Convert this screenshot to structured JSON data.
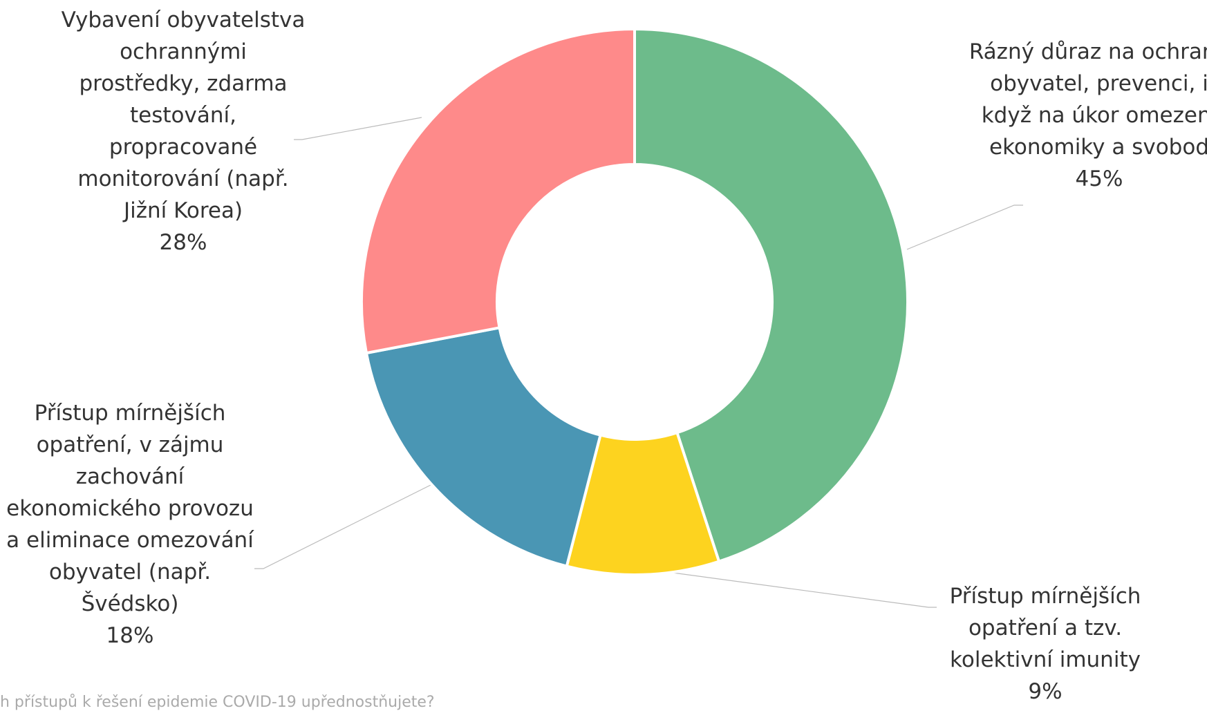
{
  "chart_data": {
    "type": "donut",
    "categories": [
      "Rázný důraz na ochranu obyvatel, prevenci, i když na úkor omezení ekonomiky a svobod",
      "Přístup mírnějších opatření a tzv. kolektivní imunity",
      "Přístup mírnějších opatření, v zájmu zachování ekonomického provozu a eliminace omezování obyvatel (např. Švédsko)",
      "Vybavení obyvatelstva ochrannými prostředky, zdarma testování, propracované monitorování (např. Jižní Korea)"
    ],
    "values": [
      45,
      9,
      18,
      28
    ],
    "value_labels": [
      "45%",
      "9%",
      "18%",
      "28%"
    ],
    "colors": [
      "#6dbb8b",
      "#fdd31f",
      "#4a96b4",
      "#fe8a8a"
    ],
    "caption": "h přístupů k řešení epidemie COVID-19 upřednostňujete?"
  }
}
